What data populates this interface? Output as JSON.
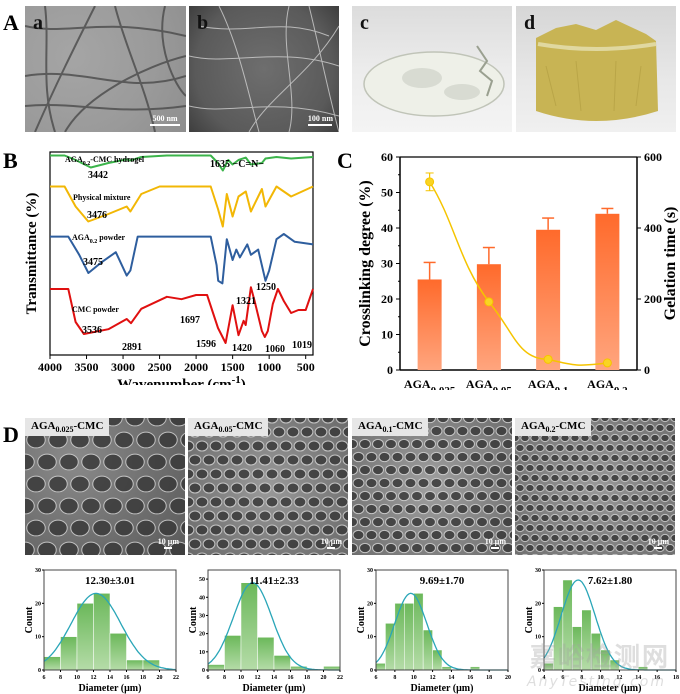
{
  "panels": {
    "A": {
      "letter": "A",
      "images": [
        {
          "label": "a",
          "scalebar": "500 nm",
          "type": "TEM micrograph"
        },
        {
          "label": "b",
          "scalebar": "100 nm",
          "type": "TEM micrograph"
        },
        {
          "label": "c",
          "type": "photo of transparent hydrogel"
        },
        {
          "label": "d",
          "type": "photo of yellow hydrogel"
        }
      ]
    },
    "B": {
      "letter": "B"
    },
    "C": {
      "letter": "C"
    },
    "D": {
      "letter": "D",
      "sem_images": [
        {
          "label_main": "AGA",
          "label_sub": "0.025",
          "label_tail": "-CMC",
          "scalebar": "10 μm"
        },
        {
          "label_main": "AGA",
          "label_sub": "0.05",
          "label_tail": "-CMC",
          "scalebar": "10 μm"
        },
        {
          "label_main": "AGA",
          "label_sub": "0.1",
          "label_tail": "-CMC",
          "scalebar": "10 μm"
        },
        {
          "label_main": "AGA",
          "label_sub": "0.2",
          "label_tail": "-CMC",
          "scalebar": "10 μm"
        }
      ]
    }
  },
  "watermark": {
    "cn": "嘉峪检测网",
    "en": "AnyTesting.com"
  },
  "chart_data": [
    {
      "id": "B",
      "type": "line",
      "title": "",
      "xlabel": "Wavenumber (cm",
      "xlabel_sup": "-1",
      "xlabel_close": ")",
      "ylabel": "Transmittance (%)",
      "xlim": [
        4000,
        400
      ],
      "xticks": [
        4000,
        3500,
        3000,
        2500,
        2000,
        1500,
        1000,
        500
      ],
      "grid": false,
      "series": [
        {
          "name": "AGA0.2-CMC hydrogel",
          "name_main": "AGA",
          "name_sub": "0.2",
          "name_tail": "-CMC hydrogel",
          "color": "#3cb44b",
          "points": [
            [
              4000,
              0.95
            ],
            [
              3800,
              0.95
            ],
            [
              3650,
              0.8
            ],
            [
              3442,
              0.55
            ],
            [
              3200,
              0.7
            ],
            [
              2950,
              0.82
            ],
            [
              2900,
              0.78
            ],
            [
              2750,
              0.9
            ],
            [
              2400,
              0.95
            ],
            [
              1800,
              0.95
            ],
            [
              1700,
              0.7
            ],
            [
              1635,
              0.45
            ],
            [
              1560,
              0.8
            ],
            [
              1500,
              0.65
            ],
            [
              1420,
              0.8
            ],
            [
              1320,
              0.88
            ],
            [
              1250,
              0.65
            ],
            [
              1100,
              0.7
            ],
            [
              1050,
              0.85
            ],
            [
              900,
              0.9
            ],
            [
              700,
              0.85
            ],
            [
              400,
              0.9
            ]
          ]
        },
        {
          "name": "Physical mixture",
          "color": "#f2b705",
          "points": [
            [
              4000,
              0.95
            ],
            [
              3800,
              0.95
            ],
            [
              3650,
              0.55
            ],
            [
              3476,
              0.25
            ],
            [
              3200,
              0.4
            ],
            [
              2950,
              0.55
            ],
            [
              2900,
              0.45
            ],
            [
              2750,
              0.8
            ],
            [
              2500,
              0.95
            ],
            [
              1800,
              0.95
            ],
            [
              1700,
              0.5
            ],
            [
              1635,
              0.15
            ],
            [
              1580,
              0.8
            ],
            [
              1500,
              0.35
            ],
            [
              1420,
              0.75
            ],
            [
              1320,
              0.85
            ],
            [
              1250,
              0.45
            ],
            [
              1100,
              0.9
            ],
            [
              1050,
              0.55
            ],
            [
              900,
              0.95
            ],
            [
              700,
              0.75
            ],
            [
              400,
              0.95
            ]
          ]
        },
        {
          "name": "AGA0.2 powder",
          "name_main": "AGA",
          "name_sub": "0.2",
          "name_tail": " powder",
          "color": "#2e5e9e",
          "points": [
            [
              4000,
              0.95
            ],
            [
              3750,
              0.95
            ],
            [
              3600,
              0.6
            ],
            [
              3475,
              0.25
            ],
            [
              3300,
              0.45
            ],
            [
              3100,
              0.65
            ],
            [
              2950,
              0.2
            ],
            [
              2900,
              0.3
            ],
            [
              2800,
              0.95
            ],
            [
              1800,
              0.95
            ],
            [
              1720,
              0.4
            ],
            [
              1697,
              0.1
            ],
            [
              1640,
              0.05
            ],
            [
              1580,
              0.9
            ],
            [
              1500,
              0.5
            ],
            [
              1450,
              0.7
            ],
            [
              1400,
              0.55
            ],
            [
              1300,
              0.8
            ],
            [
              1250,
              0.6
            ],
            [
              1150,
              0.7
            ],
            [
              1050,
              0.1
            ],
            [
              1000,
              0.3
            ],
            [
              900,
              0.9
            ],
            [
              800,
              1.0
            ],
            [
              650,
              0.85
            ],
            [
              400,
              0.8
            ]
          ]
        },
        {
          "name": "CMC powder",
          "color": "#e01010",
          "points": [
            [
              4000,
              0.95
            ],
            [
              3750,
              0.95
            ],
            [
              3650,
              0.4
            ],
            [
              3536,
              0.2
            ],
            [
              3200,
              0.28
            ],
            [
              2950,
              0.45
            ],
            [
              2891,
              0.38
            ],
            [
              2750,
              0.62
            ],
            [
              2400,
              0.82
            ],
            [
              2200,
              0.78
            ],
            [
              2000,
              0.85
            ],
            [
              1850,
              0.85
            ],
            [
              1700,
              0.3
            ],
            [
              1596,
              0.05
            ],
            [
              1500,
              0.68
            ],
            [
              1420,
              0.18
            ],
            [
              1350,
              0.42
            ],
            [
              1321,
              0.35
            ],
            [
              1250,
              0.98
            ],
            [
              1200,
              0.75
            ],
            [
              1100,
              0.25
            ],
            [
              1060,
              0.15
            ],
            [
              1019,
              0.25
            ],
            [
              950,
              0.7
            ],
            [
              880,
              0.95
            ],
            [
              800,
              0.75
            ],
            [
              700,
              0.55
            ],
            [
              600,
              0.6
            ],
            [
              500,
              0.6
            ],
            [
              400,
              0.95
            ]
          ]
        }
      ],
      "annotations": [
        {
          "series": "AGA0.2-CMC hydrogel",
          "text": "3442"
        },
        {
          "series": "AGA0.2-CMC hydrogel",
          "text": "1635 −C=N−"
        },
        {
          "series": "Physical mixture",
          "text": "3476"
        },
        {
          "series": "AGA0.2 powder",
          "text": "3475"
        },
        {
          "series": "AGA0.2 powder",
          "text": "1697"
        },
        {
          "series": "AGA0.2 powder",
          "text": "1250"
        },
        {
          "series": "CMC powder",
          "text": "3536"
        },
        {
          "series": "CMC powder",
          "text": "2891"
        },
        {
          "series": "CMC powder",
          "text": "1596"
        },
        {
          "series": "CMC powder",
          "text": "1420"
        },
        {
          "series": "CMC powder",
          "text": "1321"
        },
        {
          "series": "CMC powder",
          "text": "1060"
        },
        {
          "series": "CMC powder",
          "text": "1019"
        }
      ]
    },
    {
      "id": "C",
      "type": "bar",
      "title": "",
      "categories": [
        {
          "main": "AGA",
          "sub": "0.025",
          "tail": "-CMC"
        },
        {
          "main": "AGA",
          "sub": "0.05",
          "tail": "-CMC"
        },
        {
          "main": "AGA",
          "sub": "0.1",
          "tail": "-CMC"
        },
        {
          "main": "AGA",
          "sub": "0.2",
          "tail": "-CMC"
        }
      ],
      "ylabel": "Crosslinking degree (%)",
      "ylim": [
        0,
        60
      ],
      "yticks": [
        0,
        10,
        20,
        30,
        40,
        50,
        60
      ],
      "y2label": "Gelation time (s)",
      "y2lim": [
        0,
        600
      ],
      "y2ticks": [
        0,
        200,
        400,
        600
      ],
      "series": [
        {
          "name": "Crosslinking degree",
          "axis": "left",
          "type": "bar",
          "color_top": "#ff6a2b",
          "color_bottom": "#ffa57e",
          "values": [
            25.5,
            29.8,
            39.5,
            44.0
          ],
          "errors": [
            4.8,
            4.7,
            3.3,
            1.5
          ]
        },
        {
          "name": "Gelation time",
          "axis": "right",
          "type": "line",
          "color": "#f5c400",
          "values": [
            530,
            192,
            30,
            20
          ],
          "errors": [
            25,
            0,
            0,
            0
          ]
        }
      ],
      "grid": false
    },
    {
      "id": "D1",
      "type": "bar",
      "title": "12.30±3.01",
      "xlabel": "Diameter (μm)",
      "ylabel": "Count",
      "xlim": [
        6,
        22
      ],
      "xticks": [
        6,
        8,
        10,
        12,
        14,
        16,
        18,
        20,
        22
      ],
      "ylim": [
        0,
        30
      ],
      "yticks": [
        0,
        10,
        20,
        30
      ],
      "bins": [
        [
          6,
          8,
          4
        ],
        [
          8,
          10,
          10
        ],
        [
          10,
          12,
          20
        ],
        [
          12,
          14,
          23
        ],
        [
          14,
          16,
          11
        ],
        [
          16,
          18,
          3
        ],
        [
          18,
          20,
          3
        ]
      ],
      "fit": {
        "mean": 12.3,
        "sd": 3.01,
        "peak": 23
      }
    },
    {
      "id": "D2",
      "type": "bar",
      "title": "11.41±2.33",
      "xlabel": "Diameter (μm)",
      "ylabel": "Count",
      "xlim": [
        6,
        22
      ],
      "xticks": [
        6,
        8,
        10,
        12,
        14,
        16,
        18,
        20,
        22
      ],
      "ylim": [
        0,
        55
      ],
      "yticks": [
        0,
        10,
        20,
        30,
        40,
        50
      ],
      "bins": [
        [
          6,
          8,
          3
        ],
        [
          8,
          10,
          19
        ],
        [
          10,
          12,
          48
        ],
        [
          12,
          14,
          18
        ],
        [
          14,
          16,
          8
        ],
        [
          16,
          18,
          2
        ],
        [
          20,
          22,
          2
        ]
      ],
      "fit": {
        "mean": 11.41,
        "sd": 2.33,
        "peak": 48
      }
    },
    {
      "id": "D3",
      "type": "bar",
      "title": "9.69±1.70",
      "xlabel": "Diameter (μm)",
      "ylabel": "Count",
      "xlim": [
        6,
        20
      ],
      "xticks": [
        6,
        8,
        10,
        12,
        14,
        16,
        18,
        20
      ],
      "ylim": [
        0,
        30
      ],
      "yticks": [
        0,
        10,
        20,
        30
      ],
      "bins": [
        [
          6,
          7,
          2
        ],
        [
          7,
          8,
          14
        ],
        [
          8,
          9,
          20
        ],
        [
          9,
          10,
          20
        ],
        [
          10,
          11,
          23
        ],
        [
          11,
          12,
          12
        ],
        [
          12,
          13,
          6
        ],
        [
          13,
          14,
          1
        ],
        [
          16,
          17,
          1
        ]
      ],
      "fit": {
        "mean": 9.69,
        "sd": 1.7,
        "peak": 23
      }
    },
    {
      "id": "D4",
      "type": "bar",
      "title": "7.62±1.80",
      "xlabel": "Diameter (μm)",
      "ylabel": "Count",
      "xlim": [
        4,
        18
      ],
      "xticks": [
        4,
        6,
        8,
        10,
        12,
        14,
        16,
        18
      ],
      "ylim": [
        0,
        30
      ],
      "yticks": [
        0,
        10,
        20,
        30
      ],
      "bins": [
        [
          4,
          5,
          2
        ],
        [
          5,
          6,
          19
        ],
        [
          6,
          7,
          27
        ],
        [
          7,
          8,
          13
        ],
        [
          8,
          9,
          18
        ],
        [
          9,
          10,
          11
        ],
        [
          10,
          11,
          6
        ],
        [
          11,
          12,
          3
        ],
        [
          14,
          15,
          1
        ]
      ],
      "fit": {
        "mean": 7.62,
        "sd": 1.8,
        "peak": 27
      }
    }
  ]
}
